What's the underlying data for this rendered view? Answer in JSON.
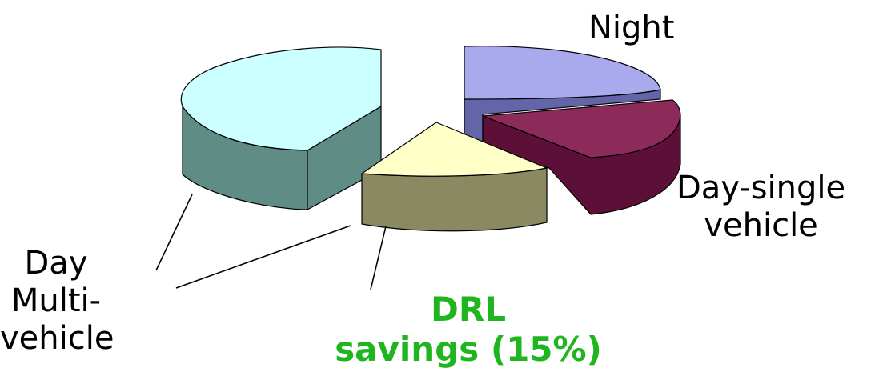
{
  "chart_data": {
    "type": "pie",
    "style": "3d-exploded",
    "categories": [
      "Night",
      "Day-single vehicle",
      "DRL savings (15%)",
      "Day Multi-vehicle"
    ],
    "values": [
      17,
      27,
      15,
      41
    ],
    "labels": {
      "night": [
        "Night"
      ],
      "day_single": [
        "Day-single",
        "vehicle"
      ],
      "day_multi": [
        "Day",
        "Multi-",
        "vehicle"
      ],
      "drl": [
        "DRL",
        "savings (15%)"
      ]
    },
    "colors": {
      "night_top": "#a9a9ee",
      "night_side": "#6464a8",
      "day_single_top": "#8c2a5a",
      "day_single_side": "#5c1038",
      "drl_top": "#ffffc8",
      "drl_side": "#8a8a62",
      "day_multi_top": "#ccffff",
      "day_multi_side": "#5f8c84",
      "drl_label": "#1fb51f"
    }
  }
}
